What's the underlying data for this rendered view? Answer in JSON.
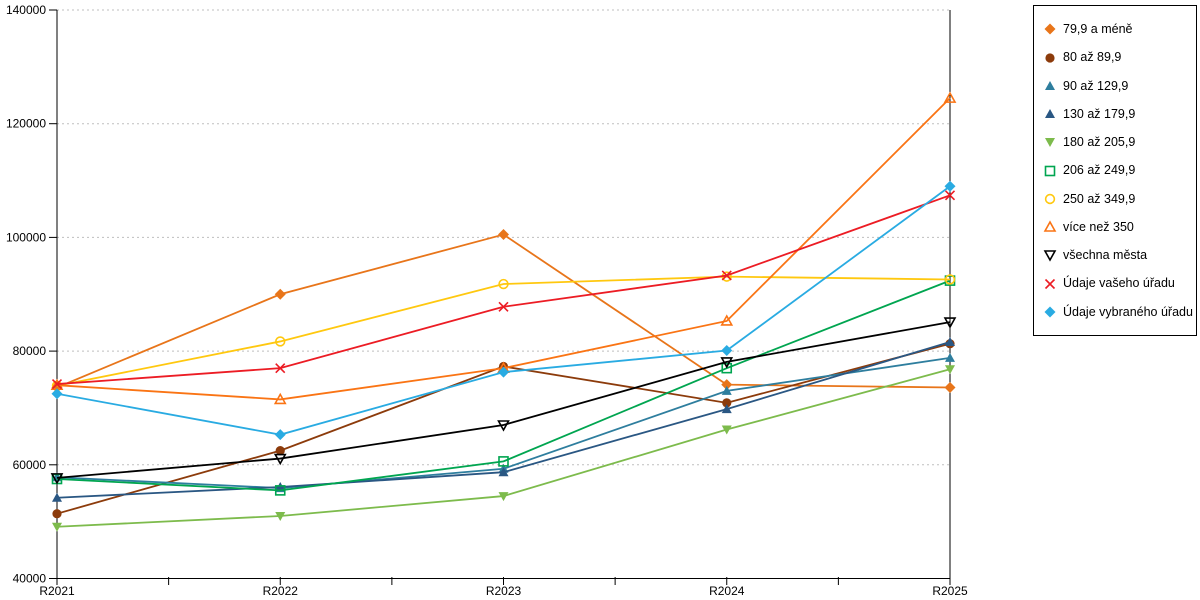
{
  "chart_data": {
    "type": "line",
    "title": "",
    "xlabel": "",
    "ylabel": "",
    "categories": [
      "R2021",
      "R2022",
      "R2023",
      "R2024",
      "R2025"
    ],
    "ylim": [
      40000,
      140000
    ],
    "y_tick_step": 20000,
    "y_tick_labels": [
      "40000",
      "60000",
      "80000",
      "100000",
      "120000",
      "140000"
    ],
    "grid": "horizontal-dashed",
    "grid_color": "#BFBFBF",
    "axis_color": "#000000",
    "legend_position": "top-right-outside",
    "series": [
      {
        "name": "79,9 a méně",
        "marker": "diamond-filled",
        "color": "#E8751A",
        "values": [
          73600,
          90000,
          100500,
          74100,
          73600
        ]
      },
      {
        "name": "80 až 89,9",
        "marker": "circle-filled",
        "color": "#8C3B0B",
        "values": [
          51400,
          62500,
          77300,
          70900,
          81300
        ]
      },
      {
        "name": "90 až 129,9",
        "marker": "triangle-up-filled",
        "color": "#2E7E9E",
        "values": [
          57800,
          55900,
          59300,
          73000,
          78800
        ]
      },
      {
        "name": "130 až 179,9",
        "marker": "triangle-up-filled",
        "color": "#2A5783",
        "values": [
          54200,
          56100,
          58700,
          69800,
          81600
        ]
      },
      {
        "name": "180 až 205,9",
        "marker": "triangle-down-filled",
        "color": "#7DBB4C",
        "values": [
          49100,
          51000,
          54500,
          66200,
          76800
        ]
      },
      {
        "name": "206 až 249,9",
        "marker": "square-open",
        "color": "#00A550",
        "values": [
          57500,
          55500,
          60600,
          77000,
          92400
        ]
      },
      {
        "name": "250 až 349,9",
        "marker": "circle-open",
        "color": "#FFC80F",
        "values": [
          73900,
          81700,
          91800,
          93100,
          92600
        ]
      },
      {
        "name": "více než 350",
        "marker": "triangle-up-open",
        "color": "#FA7414",
        "values": [
          74000,
          71500,
          77000,
          85300,
          124500
        ]
      },
      {
        "name": "všechna města",
        "marker": "triangle-down-open",
        "color": "#000000",
        "values": [
          57700,
          61100,
          67000,
          78100,
          85100
        ]
      },
      {
        "name": "Údaje vašeho úřadu",
        "marker": "x",
        "color": "#EC1C24",
        "values": [
          74200,
          77000,
          87800,
          93300,
          107400
        ]
      },
      {
        "name": "Údaje vybraného úřadu",
        "marker": "diamond-filled",
        "color": "#29ABE2",
        "values": [
          72500,
          65300,
          76300,
          80100,
          109000
        ]
      }
    ]
  }
}
